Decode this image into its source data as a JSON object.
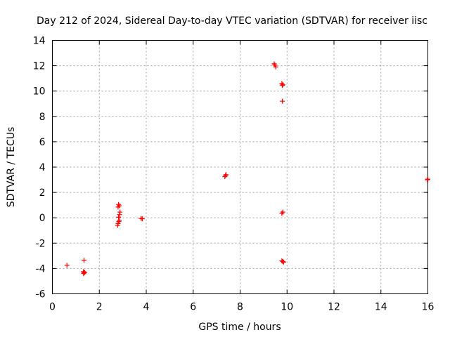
{
  "chart_data": {
    "type": "scatter",
    "title": "Day 212 of 2024, Sidereal Day-to-day VTEC variation (SDTVAR) for receiver iisc",
    "xlabel": "GPS time / hours",
    "ylabel": "SDTVAR / TECUs",
    "xlim": [
      0,
      16
    ],
    "ylim": [
      -6,
      14
    ],
    "xticks": [
      "0",
      "2",
      "4",
      "6",
      "8",
      "10",
      "12",
      "14",
      "16"
    ],
    "yticks": [
      "-6",
      "-4",
      "-2",
      "0",
      "2",
      "4",
      "6",
      "8",
      "10",
      "12",
      "14"
    ],
    "grid": true,
    "marker": "+",
    "color": "#ff0000",
    "series": [
      {
        "name": "SDTVAR",
        "points": [
          [
            0.62,
            -3.75
          ],
          [
            1.35,
            -3.35
          ],
          [
            1.32,
            -4.25
          ],
          [
            1.35,
            -4.35
          ],
          [
            1.38,
            -4.3
          ],
          [
            1.33,
            -4.4
          ],
          [
            2.78,
            -0.6
          ],
          [
            2.8,
            -0.45
          ],
          [
            2.83,
            -0.3
          ],
          [
            2.85,
            -0.2
          ],
          [
            2.82,
            0.05
          ],
          [
            2.86,
            0.25
          ],
          [
            2.88,
            0.45
          ],
          [
            2.8,
            0.85
          ],
          [
            2.85,
            0.95
          ],
          [
            2.82,
            1.05
          ],
          [
            3.78,
            -0.05
          ],
          [
            3.83,
            -0.08
          ],
          [
            7.35,
            3.25
          ],
          [
            7.38,
            3.35
          ],
          [
            7.4,
            3.4
          ],
          [
            9.45,
            12.15
          ],
          [
            9.48,
            12.05
          ],
          [
            9.52,
            11.9
          ],
          [
            9.78,
            10.6
          ],
          [
            9.82,
            10.5
          ],
          [
            9.8,
            10.45
          ],
          [
            9.8,
            9.2
          ],
          [
            9.78,
            0.35
          ],
          [
            9.82,
            0.45
          ],
          [
            9.78,
            -3.4
          ],
          [
            9.82,
            -3.45
          ],
          [
            9.85,
            -3.5
          ],
          [
            15.98,
            3.0
          ],
          [
            16.0,
            3.05
          ]
        ]
      }
    ]
  }
}
